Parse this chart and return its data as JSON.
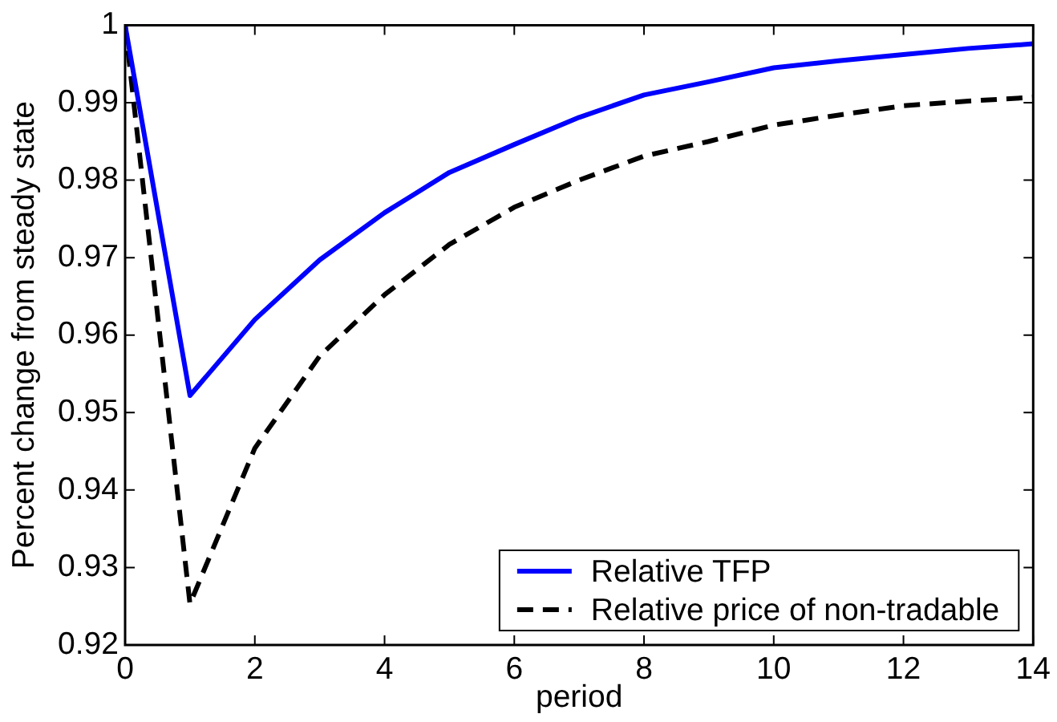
{
  "chart_data": {
    "type": "line",
    "xlabel": "period",
    "ylabel": "Percent change from steady state",
    "x": [
      0,
      1,
      2,
      3,
      4,
      5,
      6,
      7,
      8,
      9,
      10,
      11,
      12,
      13,
      14
    ],
    "series": [
      {
        "name": "Relative TFP",
        "color": "#0000ff",
        "line_style": "solid",
        "values": [
          1,
          0.9522,
          0.962,
          0.9697,
          0.9758,
          0.981,
          0.9846,
          0.9881,
          0.991,
          0.9927,
          0.9945,
          0.9954,
          0.9962,
          0.997,
          0.9976
        ]
      },
      {
        "name": "Relative price of non-tradable",
        "color": "#000000",
        "line_style": "dashed",
        "values": [
          1,
          0.9253,
          0.9454,
          0.9573,
          0.9652,
          0.9717,
          0.9765,
          0.98,
          0.9831,
          0.985,
          0.9871,
          0.9884,
          0.9896,
          0.9902,
          0.9907
        ]
      }
    ],
    "xlim": [
      0,
      14
    ],
    "xticks": [
      0,
      2,
      4,
      6,
      8,
      10,
      12,
      14
    ],
    "ylim": [
      0.92,
      1
    ],
    "yticks": [
      0.92,
      0.93,
      0.94,
      0.95,
      0.96,
      0.97,
      0.98,
      0.99,
      1
    ],
    "grid": false,
    "legend": "bottom right",
    "marker": "none"
  }
}
